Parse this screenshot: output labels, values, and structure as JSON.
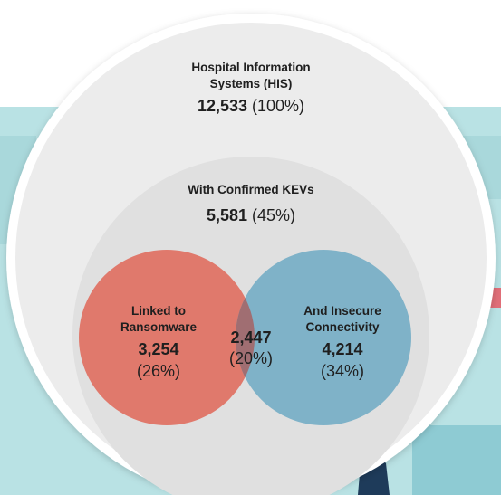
{
  "colors": {
    "background_top": "#ffffff",
    "background_teal": "#b9e2e4",
    "outer_ring": "#ffffff",
    "outer_circle": "#ececec",
    "inner_circle": "#e0e0e0",
    "ransomware_circle": "#e0796c",
    "connectivity_circle": "#7fb2c8",
    "overlap": "#a06e72"
  },
  "diagram": {
    "outer": {
      "title_line1": "Hospital Information",
      "title_line2": "Systems (HIS)",
      "count": "12,533",
      "percent": "(100%)"
    },
    "kev": {
      "title": "With Confirmed KEVs",
      "count": "5,581",
      "percent": "(45%)"
    },
    "ransomware": {
      "title_line1": "Linked to",
      "title_line2": "Ransomware",
      "count": "3,254",
      "percent": "(26%)"
    },
    "overlap": {
      "count": "2,447",
      "percent": "(20%)"
    },
    "connectivity": {
      "title_line1": "And Insecure",
      "title_line2": "Connectivity",
      "count": "4,214",
      "percent": "(34%)"
    }
  }
}
